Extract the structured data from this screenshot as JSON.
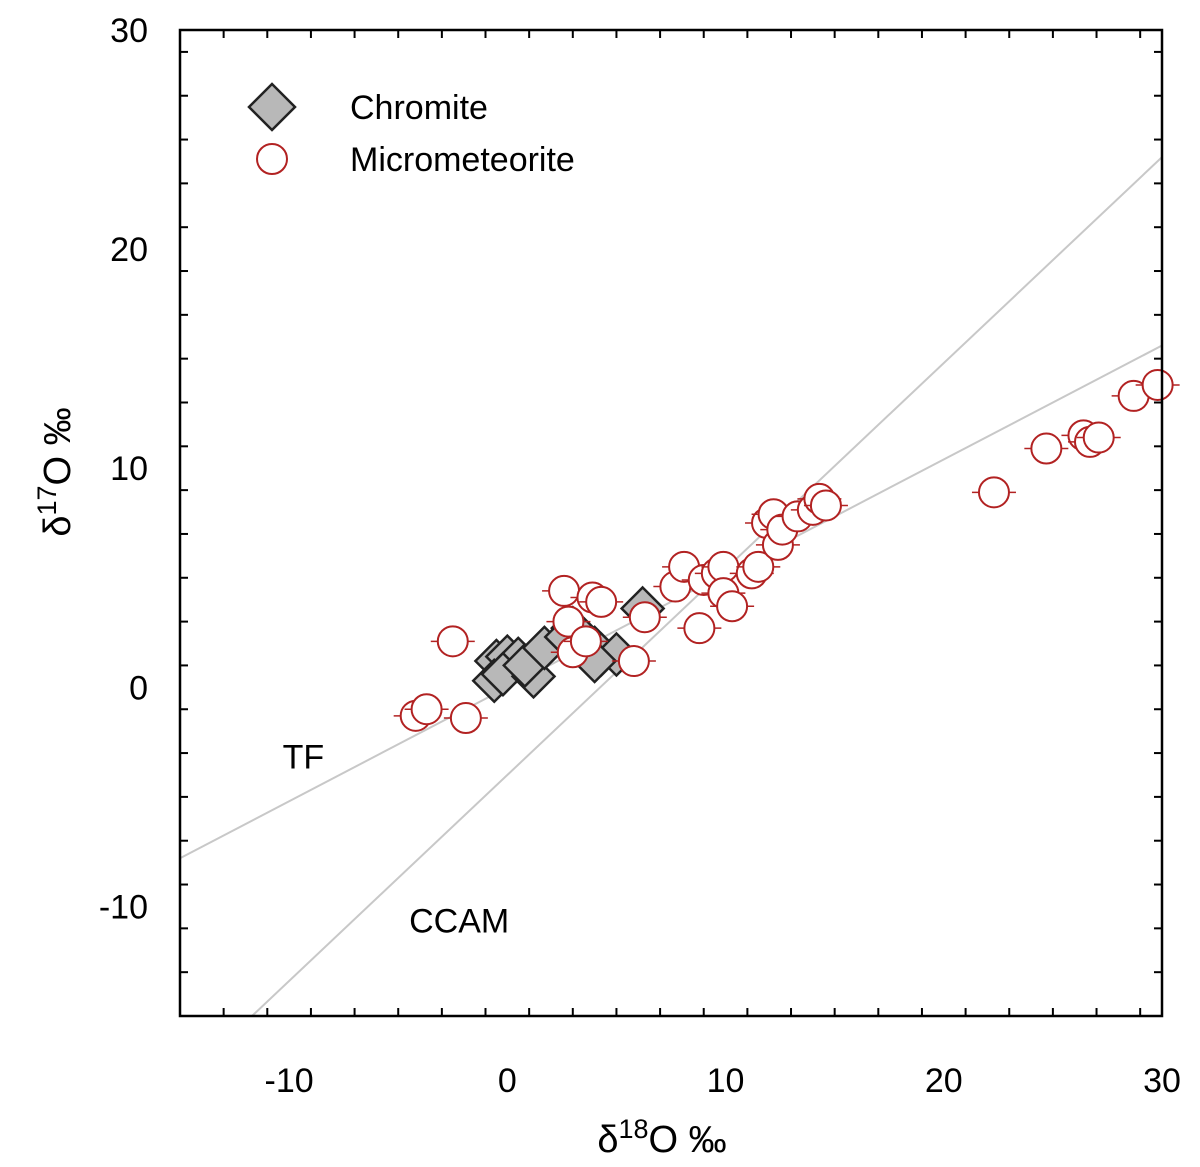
{
  "chart_data": {
    "type": "scatter",
    "xlabel": {
      "prefix": "δ",
      "sup": "18",
      "suffix": "O ‰"
    },
    "ylabel": {
      "prefix": "δ",
      "sup": "17",
      "suffix": "O ‰"
    },
    "xlim": [
      -15,
      30
    ],
    "ylim": [
      -15,
      30
    ],
    "x_ticks": [
      -10,
      0,
      10,
      20,
      30
    ],
    "y_ticks": [
      -10,
      0,
      10,
      20,
      30
    ],
    "x_tick_labels": [
      "-10",
      "0",
      "10",
      "20",
      "30"
    ],
    "y_tick_labels": [
      "-10",
      "0",
      "10",
      "20",
      "30"
    ],
    "grid": false,
    "legend_position": "top-left",
    "colors": {
      "chromite_fill": "#b8b8b8",
      "chromite_edge": "#222222",
      "micrometeorite_edge": "#b22222",
      "reference_line": "#c8c8c8"
    },
    "series": [
      {
        "name": "Chromite",
        "marker": "diamond",
        "points": [
          {
            "x": -0.5,
            "y": 1.2
          },
          {
            "x": 0.0,
            "y": 1.4
          },
          {
            "x": 0.5,
            "y": 1.3
          },
          {
            "x": -0.6,
            "y": 0.3
          },
          {
            "x": -0.2,
            "y": 0.6
          },
          {
            "x": 1.2,
            "y": 0.5
          },
          {
            "x": 0.8,
            "y": 1.0
          },
          {
            "x": 1.7,
            "y": 1.8
          },
          {
            "x": 3.0,
            "y": 2.7
          },
          {
            "x": 2.7,
            "y": 2.3
          },
          {
            "x": 4.0,
            "y": 1.8
          },
          {
            "x": 4.3,
            "y": 1.5
          },
          {
            "x": 5.0,
            "y": 1.5
          },
          {
            "x": 4.0,
            "y": 1.2
          },
          {
            "x": 6.2,
            "y": 3.6
          }
        ]
      },
      {
        "name": "Micrometeorite",
        "marker": "open-circle",
        "points": [
          {
            "x": -4.2,
            "y": -1.3
          },
          {
            "x": -3.7,
            "y": -1.0
          },
          {
            "x": -1.9,
            "y": -1.4
          },
          {
            "x": -2.5,
            "y": 2.1
          },
          {
            "x": 2.6,
            "y": 4.4
          },
          {
            "x": 3.9,
            "y": 4.1
          },
          {
            "x": 4.3,
            "y": 3.9
          },
          {
            "x": 2.8,
            "y": 3.0
          },
          {
            "x": 3.0,
            "y": 1.6
          },
          {
            "x": 3.6,
            "y": 2.1
          },
          {
            "x": 5.8,
            "y": 1.2
          },
          {
            "x": 6.3,
            "y": 3.2
          },
          {
            "x": 7.7,
            "y": 4.6
          },
          {
            "x": 8.1,
            "y": 5.5
          },
          {
            "x": 8.8,
            "y": 2.7
          },
          {
            "x": 9.0,
            "y": 4.9
          },
          {
            "x": 9.6,
            "y": 5.2
          },
          {
            "x": 9.9,
            "y": 5.5
          },
          {
            "x": 9.9,
            "y": 4.3
          },
          {
            "x": 10.3,
            "y": 3.7
          },
          {
            "x": 11.2,
            "y": 5.2
          },
          {
            "x": 11.5,
            "y": 5.5
          },
          {
            "x": 11.9,
            "y": 7.5
          },
          {
            "x": 12.2,
            "y": 7.9
          },
          {
            "x": 12.4,
            "y": 6.5
          },
          {
            "x": 12.6,
            "y": 7.2
          },
          {
            "x": 13.3,
            "y": 7.8
          },
          {
            "x": 14.0,
            "y": 8.1
          },
          {
            "x": 14.3,
            "y": 8.6
          },
          {
            "x": 14.6,
            "y": 8.3
          },
          {
            "x": 22.3,
            "y": 8.9
          },
          {
            "x": 24.7,
            "y": 10.9
          },
          {
            "x": 26.4,
            "y": 11.5
          },
          {
            "x": 26.7,
            "y": 11.2
          },
          {
            "x": 27.1,
            "y": 11.4
          },
          {
            "x": 28.7,
            "y": 13.3
          },
          {
            "x": 29.8,
            "y": 13.8
          }
        ]
      }
    ],
    "reference_lines": [
      {
        "label": "TF",
        "slope": 0.52,
        "intercept": 0.0
      },
      {
        "label": "CCAM",
        "slope": 0.94,
        "intercept": -4.0
      }
    ]
  }
}
